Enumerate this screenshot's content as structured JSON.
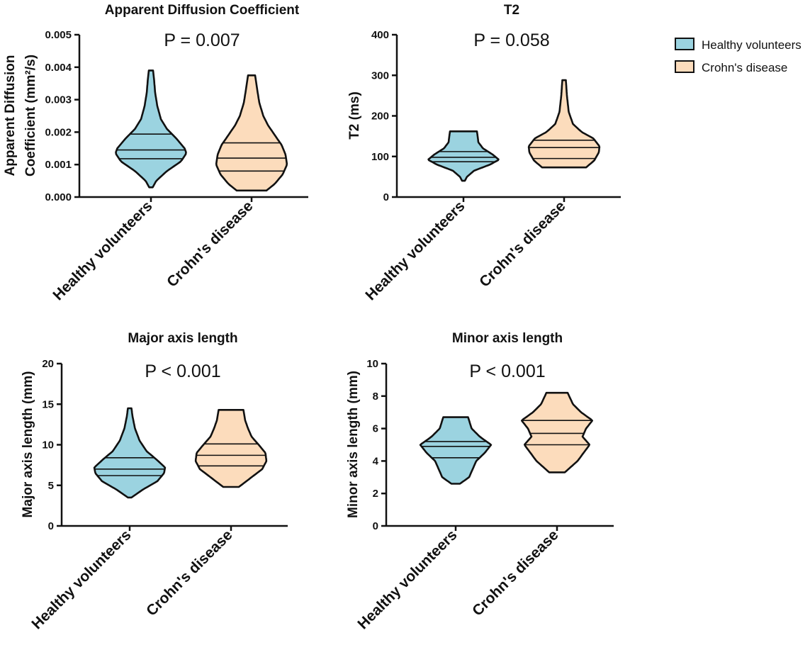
{
  "colors": {
    "healthy": "#9bd3e0",
    "crohns": "#fcdcbc",
    "stroke": "#111111"
  },
  "legend": {
    "items": [
      {
        "label": "Healthy volunteers",
        "color": "#9bd3e0"
      },
      {
        "label": "Crohn's disease",
        "color": "#fcdcbc"
      }
    ],
    "placement": "top-right"
  },
  "chart_data": [
    {
      "type": "violin",
      "title": "Apparent Diffusion Coefficient",
      "pvalue": "P = 0.007",
      "ylabel_lines": [
        "Apparent Diffusion",
        "Coefficient (mm²/s)"
      ],
      "ylim": [
        0,
        0.005
      ],
      "ticks": [
        0,
        0.001,
        0.002,
        0.003,
        0.004,
        0.005
      ],
      "tick_labels": [
        "0.000",
        "0.001",
        "0.002",
        "0.003",
        "0.004",
        "0.005"
      ],
      "categories": [
        "Healthy volunteers",
        "Crohn's disease"
      ],
      "series": [
        {
          "name": "Healthy volunteers",
          "min": 0.0003,
          "max": 0.0039,
          "q1": 0.00118,
          "median": 0.00145,
          "q3": 0.00194,
          "profile": [
            [
              0.0003,
              0.05
            ],
            [
              0.0005,
              0.15
            ],
            [
              0.0008,
              0.45
            ],
            [
              0.0011,
              0.85
            ],
            [
              0.00135,
              1.0
            ],
            [
              0.0015,
              0.95
            ],
            [
              0.0018,
              0.72
            ],
            [
              0.0021,
              0.45
            ],
            [
              0.0024,
              0.28
            ],
            [
              0.0028,
              0.18
            ],
            [
              0.0032,
              0.12
            ],
            [
              0.0036,
              0.09
            ],
            [
              0.0039,
              0.06
            ]
          ]
        },
        {
          "name": "Crohn's disease",
          "min": 0.0002,
          "max": 0.00375,
          "q1": 0.0008,
          "median": 0.0012,
          "q3": 0.00167,
          "profile": [
            [
              0.0002,
              0.42
            ],
            [
              0.0004,
              0.65
            ],
            [
              0.0007,
              0.88
            ],
            [
              0.001,
              1.0
            ],
            [
              0.0013,
              0.96
            ],
            [
              0.0016,
              0.85
            ],
            [
              0.0019,
              0.66
            ],
            [
              0.0022,
              0.47
            ],
            [
              0.0025,
              0.33
            ],
            [
              0.0029,
              0.22
            ],
            [
              0.0033,
              0.16
            ],
            [
              0.00375,
              0.1
            ]
          ]
        }
      ]
    },
    {
      "type": "violin",
      "title": "T2",
      "pvalue": "P = 0.058",
      "ylabel_lines": [
        "T2 (ms)"
      ],
      "ylim": [
        0,
        400
      ],
      "ticks": [
        0,
        100,
        200,
        300,
        400
      ],
      "tick_labels": [
        "0",
        "100",
        "200",
        "300",
        "400"
      ],
      "categories": [
        "Healthy volunteers",
        "Crohn's disease"
      ],
      "series": [
        {
          "name": "Healthy volunteers",
          "min": 40,
          "max": 162,
          "q1": 87,
          "median": 98,
          "q3": 112,
          "profile": [
            [
              40,
              0.04
            ],
            [
              50,
              0.1
            ],
            [
              65,
              0.3
            ],
            [
              80,
              0.75
            ],
            [
              92,
              1.0
            ],
            [
              105,
              0.82
            ],
            [
              120,
              0.55
            ],
            [
              135,
              0.42
            ],
            [
              150,
              0.4
            ],
            [
              162,
              0.38
            ]
          ]
        },
        {
          "name": "Crohn's disease",
          "min": 73,
          "max": 288,
          "q1": 95,
          "median": 122,
          "q3": 140,
          "profile": [
            [
              73,
              0.62
            ],
            [
              90,
              0.85
            ],
            [
              110,
              0.98
            ],
            [
              125,
              1.0
            ],
            [
              145,
              0.82
            ],
            [
              160,
              0.5
            ],
            [
              180,
              0.25
            ],
            [
              210,
              0.13
            ],
            [
              250,
              0.08
            ],
            [
              288,
              0.05
            ]
          ]
        }
      ]
    },
    {
      "type": "violin",
      "title": "Major axis length",
      "pvalue": "P < 0.001",
      "ylabel_lines": [
        "Major axis length (mm)"
      ],
      "ylim": [
        0,
        20
      ],
      "ticks": [
        0,
        5,
        10,
        15,
        20
      ],
      "tick_labels": [
        "0",
        "5",
        "10",
        "15",
        "20"
      ],
      "categories": [
        "Healthy volunteers",
        "Crohn's disease"
      ],
      "series": [
        {
          "name": "Healthy volunteers",
          "min": 3.5,
          "max": 14.5,
          "q1": 6.2,
          "median": 7.0,
          "q3": 8.4,
          "profile": [
            [
              3.5,
              0.05
            ],
            [
              4.5,
              0.38
            ],
            [
              5.5,
              0.78
            ],
            [
              6.5,
              0.97
            ],
            [
              7.2,
              1.0
            ],
            [
              8.2,
              0.75
            ],
            [
              9.2,
              0.48
            ],
            [
              10.5,
              0.28
            ],
            [
              12,
              0.15
            ],
            [
              13.5,
              0.08
            ],
            [
              14.5,
              0.05
            ]
          ]
        },
        {
          "name": "Crohn's disease",
          "min": 4.8,
          "max": 14.3,
          "q1": 7.4,
          "median": 8.7,
          "q3": 10.1,
          "profile": [
            [
              4.8,
              0.22
            ],
            [
              6,
              0.58
            ],
            [
              7,
              0.88
            ],
            [
              8,
              1.0
            ],
            [
              9,
              0.97
            ],
            [
              10,
              0.78
            ],
            [
              11,
              0.58
            ],
            [
              12,
              0.48
            ],
            [
              13,
              0.4
            ],
            [
              14.3,
              0.35
            ]
          ]
        }
      ]
    },
    {
      "type": "violin",
      "title": "Minor axis length",
      "pvalue": "P < 0.001",
      "ylabel_lines": [
        "Minor axis length (mm)"
      ],
      "ylim": [
        0,
        10
      ],
      "ticks": [
        0,
        2,
        4,
        6,
        8,
        10
      ],
      "tick_labels": [
        "0",
        "2",
        "4",
        "6",
        "8",
        "10"
      ],
      "categories": [
        "Healthy volunteers",
        "Crohn's disease"
      ],
      "series": [
        {
          "name": "Healthy volunteers",
          "min": 2.6,
          "max": 6.7,
          "q1": 4.2,
          "median": 4.9,
          "q3": 5.2,
          "profile": [
            [
              2.6,
              0.12
            ],
            [
              3,
              0.38
            ],
            [
              3.5,
              0.48
            ],
            [
              4,
              0.58
            ],
            [
              4.5,
              0.82
            ],
            [
              5,
              1.0
            ],
            [
              5.5,
              0.68
            ],
            [
              6,
              0.45
            ],
            [
              6.7,
              0.35
            ]
          ]
        },
        {
          "name": "Crohn's disease",
          "min": 3.3,
          "max": 8.2,
          "q1": 5.0,
          "median": 5.7,
          "q3": 6.5,
          "profile": [
            [
              3.3,
              0.22
            ],
            [
              4,
              0.58
            ],
            [
              4.5,
              0.75
            ],
            [
              5,
              0.92
            ],
            [
              5.5,
              0.72
            ],
            [
              6,
              0.82
            ],
            [
              6.5,
              1.0
            ],
            [
              7,
              0.68
            ],
            [
              7.5,
              0.45
            ],
            [
              8.2,
              0.3
            ]
          ]
        }
      ]
    }
  ]
}
